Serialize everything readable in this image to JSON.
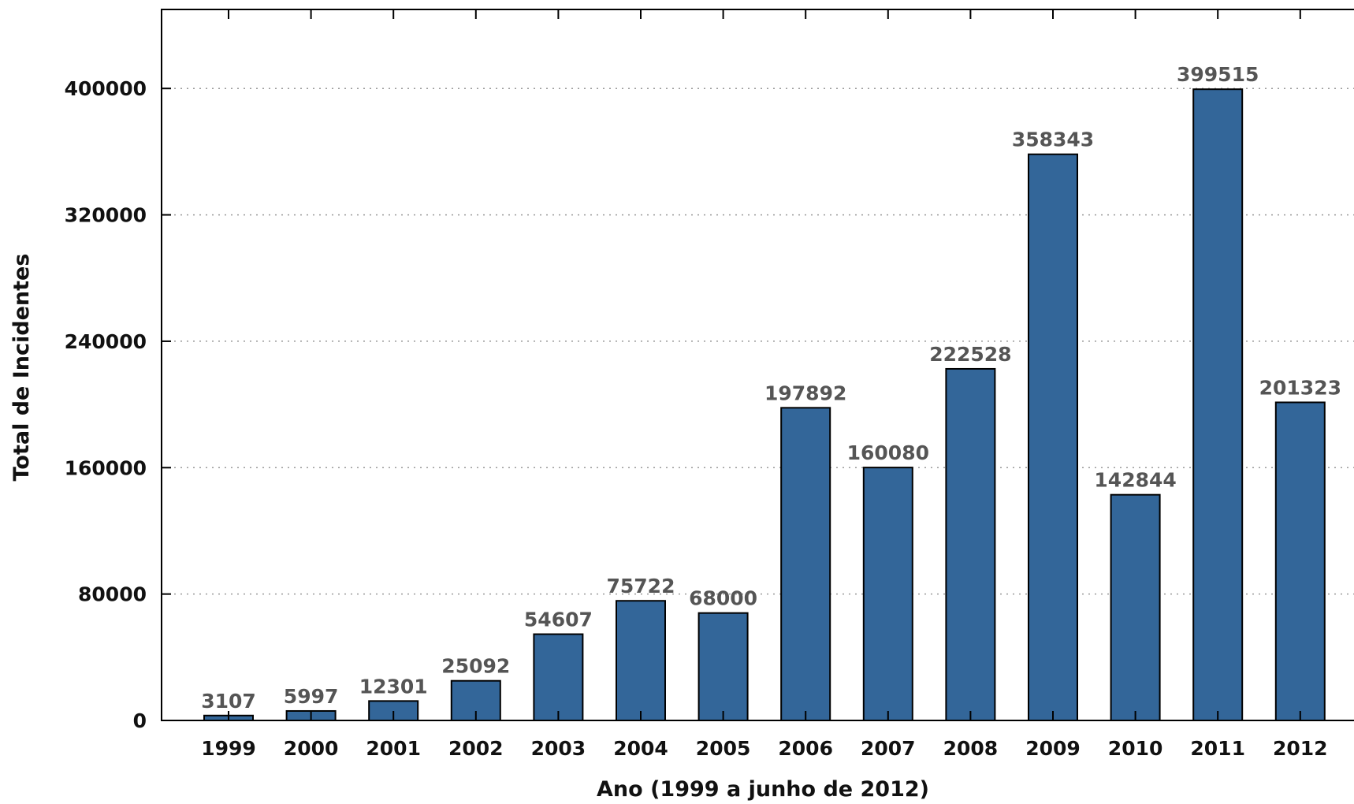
{
  "chart_data": {
    "type": "bar",
    "categories": [
      "1999",
      "2000",
      "2001",
      "2002",
      "2003",
      "2004",
      "2005",
      "2006",
      "2007",
      "2008",
      "2009",
      "2010",
      "2011",
      "2012"
    ],
    "values": [
      3107,
      5997,
      12301,
      25092,
      54607,
      75722,
      68000,
      197892,
      160080,
      222528,
      358343,
      142844,
      399515,
      201323
    ],
    "data_labels": [
      "3107",
      "5997",
      "12301",
      "25092",
      "54607",
      "75722",
      "68000",
      "197892",
      "160080",
      "222528",
      "358343",
      "142844",
      "399515",
      "201323"
    ],
    "xlabel": "Ano (1999 a junho de 2012)",
    "ylabel": "Total de Incidentes",
    "ylim": [
      0,
      450000
    ],
    "yticks": [
      0,
      80000,
      160000,
      240000,
      320000,
      400000
    ],
    "ytick_labels": [
      "0",
      "80000",
      "160000",
      "240000",
      "320000",
      "400000"
    ],
    "grid": true,
    "colors": {
      "bar": "#336699"
    }
  }
}
